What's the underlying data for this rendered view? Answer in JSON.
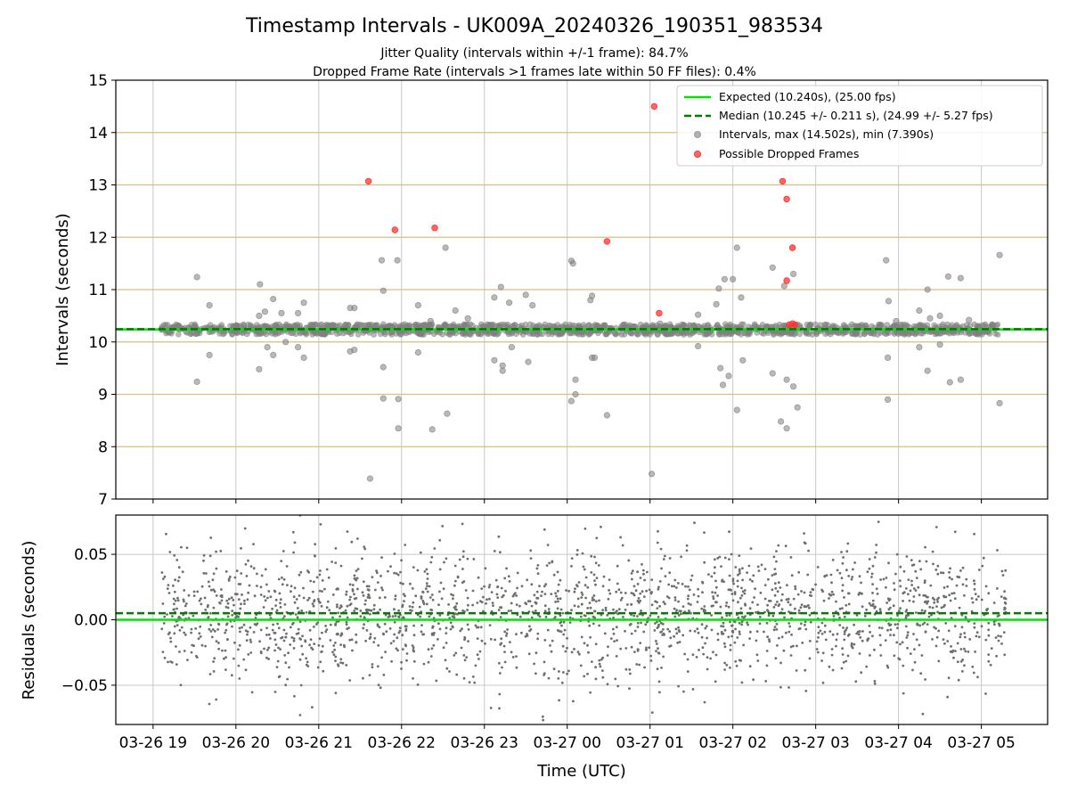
{
  "title": "Timestamp Intervals - UK009A_20240326_190351_983534",
  "subtitle_lines": [
    "Jitter Quality (intervals within +/-1 frame): 84.7%",
    "Dropped Frame Rate (intervals >1 frames late within 50 FF files): 0.4%"
  ],
  "colors": {
    "expected": "#00e400",
    "median": "#007a00",
    "intervals": "#808080",
    "dropped": "#ff3333",
    "residual_points": "#6e6e6e",
    "gold_grid": "#d8bf7f",
    "grid": "#c8c8c8"
  },
  "chart_data": [
    {
      "type": "scatter",
      "title": "",
      "xlabel": "",
      "ylabel": "Intervals (seconds)",
      "ylim": [
        7,
        15
      ],
      "yticks": [
        "7",
        "8",
        "9",
        "10",
        "11",
        "12",
        "13",
        "14",
        "15"
      ],
      "x_unit": "hours since 2024-03-26 19:00 UTC",
      "xlim": [
        -0.45,
        10.8
      ],
      "grid": true,
      "legend_position": "upper right",
      "legend": [
        "Expected (10.240s), (25.00 fps)",
        "Median (10.245 +/- 0.211 s), (24.99 +/- 5.27 fps)",
        "Intervals, max (14.502s), min (7.390s)",
        "Possible Dropped Frames"
      ],
      "expected_value": 10.24,
      "median_value": 10.245,
      "intervals_band": {
        "x_start": 0.1,
        "x_end": 10.2,
        "center": 10.24,
        "half_width": 0.1
      },
      "interval_outliers": [
        [
          0.53,
          11.24
        ],
        [
          0.53,
          9.24
        ],
        [
          0.68,
          10.7
        ],
        [
          0.68,
          9.75
        ],
        [
          1.28,
          10.5
        ],
        [
          1.28,
          9.48
        ],
        [
          1.29,
          11.1
        ],
        [
          1.35,
          10.58
        ],
        [
          1.38,
          9.9
        ],
        [
          1.45,
          10.82
        ],
        [
          1.45,
          9.75
        ],
        [
          1.55,
          10.55
        ],
        [
          1.6,
          10.0
        ],
        [
          1.75,
          10.55
        ],
        [
          1.75,
          9.9
        ],
        [
          1.82,
          10.75
        ],
        [
          1.82,
          9.7
        ],
        [
          2.38,
          10.65
        ],
        [
          2.43,
          10.65
        ],
        [
          2.43,
          9.85
        ],
        [
          2.38,
          9.82
        ],
        [
          2.62,
          7.39
        ],
        [
          2.76,
          11.56
        ],
        [
          2.78,
          10.98
        ],
        [
          2.78,
          9.52
        ],
        [
          2.78,
          8.92
        ],
        [
          2.95,
          11.56
        ],
        [
          2.96,
          8.91
        ],
        [
          2.96,
          8.35
        ],
        [
          3.2,
          10.7
        ],
        [
          3.2,
          9.8
        ],
        [
          3.35,
          10.4
        ],
        [
          3.37,
          8.33
        ],
        [
          3.53,
          11.8
        ],
        [
          3.55,
          8.63
        ],
        [
          3.65,
          10.6
        ],
        [
          3.8,
          10.45
        ],
        [
          4.12,
          10.85
        ],
        [
          4.12,
          9.65
        ],
        [
          4.2,
          11.05
        ],
        [
          4.22,
          9.55
        ],
        [
          4.22,
          9.45
        ],
        [
          4.3,
          10.75
        ],
        [
          4.33,
          9.9
        ],
        [
          4.5,
          10.9
        ],
        [
          4.53,
          9.62
        ],
        [
          4.58,
          10.7
        ],
        [
          5.05,
          11.55
        ],
        [
          5.07,
          11.5
        ],
        [
          5.05,
          8.87
        ],
        [
          5.1,
          9.0
        ],
        [
          5.1,
          9.28
        ],
        [
          5.28,
          10.8
        ],
        [
          5.3,
          10.88
        ],
        [
          5.3,
          9.7
        ],
        [
          5.33,
          9.7
        ],
        [
          5.48,
          8.6
        ],
        [
          6.12,
          10.35
        ],
        [
          6.58,
          10.52
        ],
        [
          6.58,
          9.92
        ],
        [
          6.8,
          10.72
        ],
        [
          6.83,
          11.02
        ],
        [
          6.85,
          9.5
        ],
        [
          6.88,
          9.18
        ],
        [
          6.9,
          11.2
        ],
        [
          6.95,
          9.35
        ],
        [
          7.0,
          11.2
        ],
        [
          7.05,
          11.8
        ],
        [
          7.1,
          10.85
        ],
        [
          7.12,
          9.65
        ],
        [
          7.05,
          8.7
        ],
        [
          7.48,
          11.42
        ],
        [
          7.48,
          9.4
        ],
        [
          7.62,
          11.07
        ],
        [
          7.65,
          8.35
        ],
        [
          7.65,
          9.28
        ],
        [
          7.73,
          11.3
        ],
        [
          7.73,
          9.15
        ],
        [
          7.78,
          8.75
        ],
        [
          7.58,
          8.48
        ],
        [
          8.85,
          11.56
        ],
        [
          8.87,
          9.7
        ],
        [
          8.87,
          8.9
        ],
        [
          8.88,
          10.78
        ],
        [
          8.97,
          10.4
        ],
        [
          9.25,
          10.6
        ],
        [
          9.25,
          9.9
        ],
        [
          9.35,
          11.0
        ],
        [
          9.38,
          10.45
        ],
        [
          9.35,
          9.45
        ],
        [
          9.5,
          10.5
        ],
        [
          9.5,
          9.95
        ],
        [
          9.6,
          11.25
        ],
        [
          9.62,
          9.23
        ],
        [
          9.75,
          11.22
        ],
        [
          9.75,
          9.28
        ],
        [
          9.85,
          10.42
        ],
        [
          9.97,
          10.3
        ],
        [
          10.22,
          11.66
        ],
        [
          10.22,
          8.83
        ],
        [
          6.02,
          7.48
        ]
      ],
      "dropped_frames": [
        [
          2.6,
          13.07
        ],
        [
          2.92,
          12.14
        ],
        [
          3.4,
          12.18
        ],
        [
          5.48,
          11.92
        ],
        [
          6.05,
          14.5
        ],
        [
          6.11,
          10.55
        ],
        [
          7.6,
          13.07
        ],
        [
          7.65,
          12.73
        ],
        [
          7.65,
          11.17
        ],
        [
          7.72,
          11.8
        ],
        [
          7.68,
          10.33
        ],
        [
          7.72,
          10.35
        ],
        [
          7.75,
          10.33
        ]
      ]
    },
    {
      "type": "scatter",
      "title": "",
      "xlabel": "Time (UTC)",
      "ylabel": "Residuals (seconds)",
      "ylim": [
        -0.08,
        0.08
      ],
      "yticks": [
        "−0.05",
        "0.00",
        "0.05"
      ],
      "y_tick_values": [
        -0.05,
        0.0,
        0.05
      ],
      "x_unit": "hours since 2024-03-26 19:00 UTC",
      "xlim": [
        -0.45,
        10.8
      ],
      "grid": true,
      "expected_residual": 0.0,
      "median_residual": 0.005,
      "xticks": [
        "03-26 19",
        "03-26 20",
        "03-26 21",
        "03-26 22",
        "03-26 23",
        "03-27 00",
        "03-27 01",
        "03-27 02",
        "03-27 03",
        "03-27 04",
        "03-27 05"
      ],
      "xtick_values": [
        0,
        1,
        2,
        3,
        4,
        5,
        6,
        7,
        8,
        9,
        10
      ],
      "residual_distribution": {
        "x_start": 0.1,
        "x_end": 10.3,
        "count": 2100,
        "center": 0.005,
        "spread": 0.026
      }
    }
  ]
}
